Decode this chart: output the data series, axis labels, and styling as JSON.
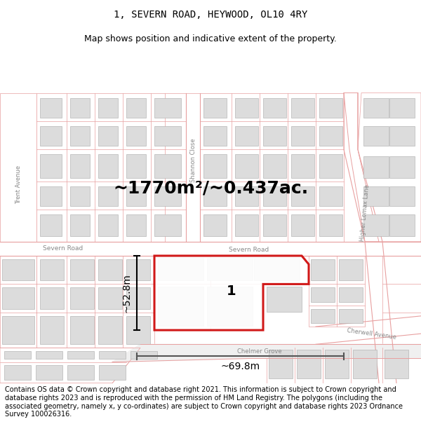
{
  "title": "1, SEVERN ROAD, HEYWOOD, OL10 4RY",
  "subtitle": "Map shows position and indicative extent of the property.",
  "area_text": "~1770m²/~0.437ac.",
  "dim1_text": "~52.8m",
  "dim2_text": "~69.8m",
  "property_label": "1",
  "copyright_text": "Contains OS data © Crown copyright and database right 2021. This information is subject to Crown copyright and database rights 2023 and is reproduced with the permission of HM Land Registry. The polygons (including the associated geometry, namely x, y co-ordinates) are subject to Crown copyright and database rights 2023 Ordnance Survey 100026316.",
  "bg_color": "#ffffff",
  "map_bg": "#ffffff",
  "plot_line_color": "#e8a0a0",
  "building_color": "#dcdcdc",
  "building_edge": "#aaaaaa",
  "road_label_color": "#888888",
  "highlight_color": "#cc0000",
  "dim_line_color": "#333333",
  "title_fontsize": 10,
  "subtitle_fontsize": 9,
  "area_fontsize": 18,
  "label_fontsize": 14,
  "dim_fontsize": 10,
  "street_fontsize": 6,
  "copyright_fontsize": 7.0
}
